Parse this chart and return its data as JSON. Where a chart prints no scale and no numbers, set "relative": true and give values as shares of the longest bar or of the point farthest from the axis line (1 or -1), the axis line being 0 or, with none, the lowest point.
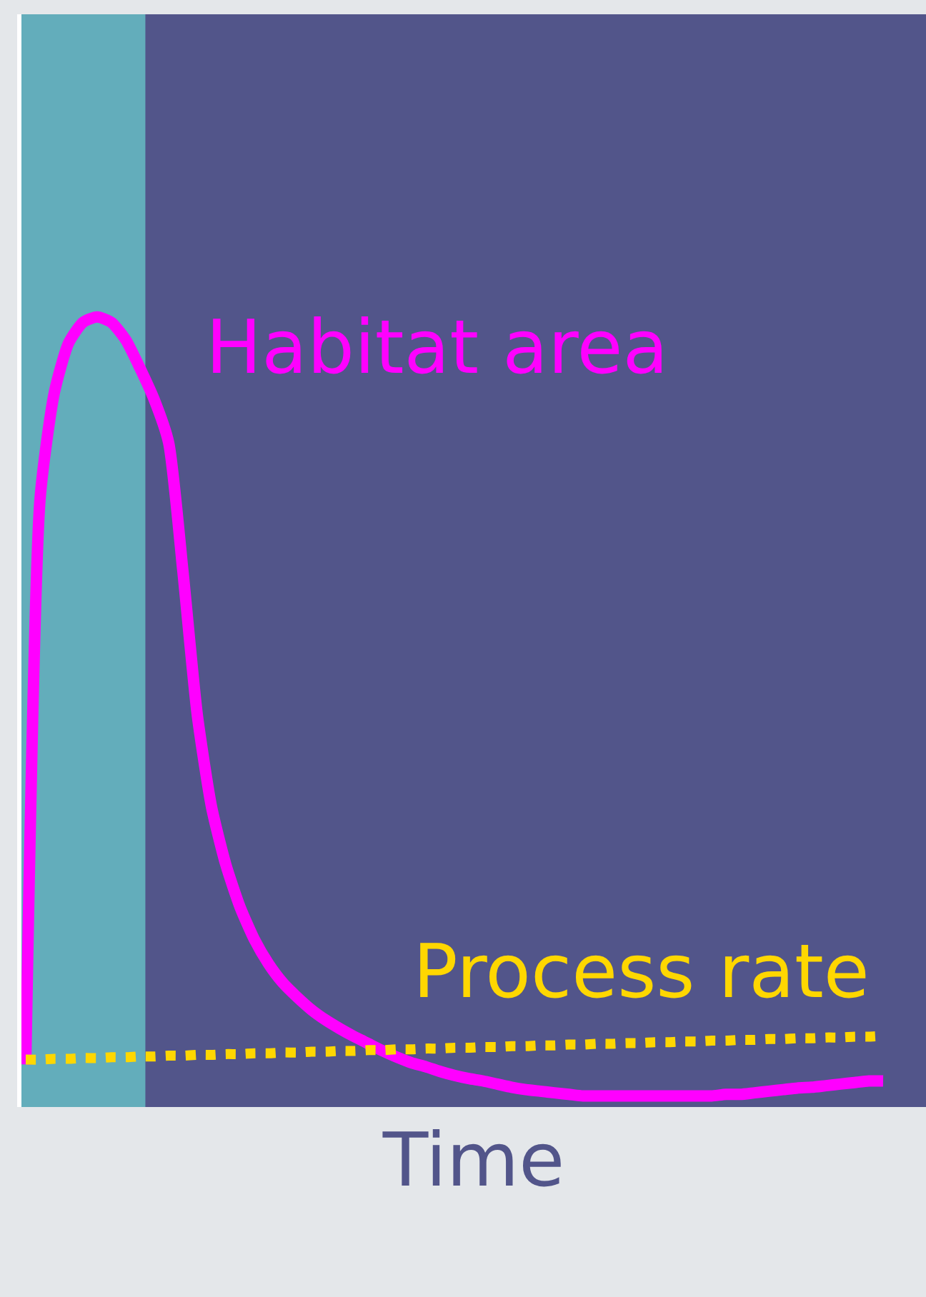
{
  "chart_data": {
    "type": "line",
    "relative": true,
    "xlabel": "Time",
    "legend": false,
    "grid": false,
    "marker": "none",
    "categories": [
      null,
      null,
      null,
      null,
      null,
      null,
      null,
      null,
      null,
      null,
      null,
      null,
      null,
      null,
      null,
      null,
      null,
      null,
      null,
      null,
      null,
      null,
      null,
      null,
      null,
      null,
      null,
      null,
      null,
      null,
      null,
      null,
      null,
      null,
      null,
      null,
      null,
      null,
      null,
      null,
      null,
      null,
      null,
      null,
      null,
      null,
      null,
      null,
      null,
      null,
      null,
      null,
      null,
      null,
      null,
      null,
      null,
      null,
      null,
      null,
      null
    ],
    "series": [
      {
        "name": "Habitat area",
        "color": "#ff00ff",
        "line_style": "solid",
        "values": [
          0.054,
          0.769,
          0.904,
          0.967,
          0.993,
          1.0,
          0.993,
          0.971,
          0.935,
          0.895,
          0.841,
          0.678,
          0.497,
          0.38,
          0.307,
          0.253,
          0.212,
          0.181,
          0.157,
          0.139,
          0.123,
          0.11,
          0.099,
          0.089,
          0.08,
          0.071,
          0.063,
          0.056,
          0.051,
          0.045,
          0.04,
          0.036,
          0.033,
          0.029,
          0.025,
          0.022,
          0.02,
          0.018,
          0.016,
          0.014,
          0.014,
          0.014,
          0.014,
          0.014,
          0.014,
          0.014,
          0.014,
          0.014,
          0.014,
          0.016,
          0.016,
          0.018,
          0.02,
          0.022,
          0.024,
          0.025,
          0.027,
          0.029,
          0.031,
          0.033,
          0.033
        ]
      },
      {
        "name": "Process rate",
        "color": "#ffd700",
        "line_style": "dotted",
        "values": [
          0.06,
          0.06,
          0.061,
          0.061,
          0.062,
          0.062,
          0.063,
          0.063,
          0.064,
          0.064,
          0.065,
          0.065,
          0.066,
          0.066,
          0.067,
          0.067,
          0.068,
          0.068,
          0.069,
          0.069,
          0.07,
          0.07,
          0.071,
          0.071,
          0.072,
          0.072,
          0.073,
          0.073,
          0.074,
          0.074,
          0.075,
          0.075,
          0.076,
          0.076,
          0.077,
          0.077,
          0.078,
          0.078,
          0.079,
          0.079,
          0.08,
          0.08,
          0.081,
          0.081,
          0.082,
          0.082,
          0.083,
          0.083,
          0.084,
          0.084,
          0.085,
          0.085,
          0.086,
          0.086,
          0.087,
          0.087,
          0.088,
          0.088,
          0.089,
          0.089,
          0.09
        ]
      }
    ]
  }
}
